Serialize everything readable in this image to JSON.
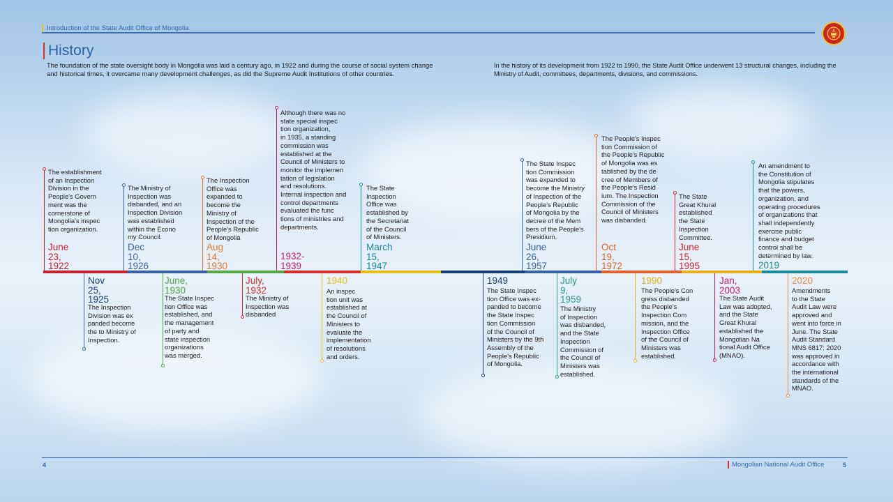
{
  "header": {
    "section": "Introduction of the State Audit Office of Mongolia"
  },
  "page": {
    "title": "History",
    "intro_left": "The foundation of the state oversight body in Mongolia was laid a century ago, in 1922 and during the course of social system change and historical times, it overcame many development challenges, as did the Supreme Audit Institutions of other countries.",
    "intro_right": "In the history of its development from 1922 to 1990, the State Audit Office underwent 13 structural changes, including the Ministry of Audit, committees, departments, divisions, and commissions."
  },
  "events": [
    {
      "date": "June\n23,\n1922",
      "color": "#c62332",
      "text": "The establishment\nof an Inspection\nDivision in the\nPeople's Govern\nment was the\ncornerstone of\nMongolia's inspec\ntion organization."
    },
    {
      "date": "Nov\n25,\n1925",
      "color": "#173f74",
      "text": "The Inspection\nDivision was ex\npanded become\nthe to Ministry of\nInspection."
    },
    {
      "date": "Dec\n10,\n1926",
      "color": "#3a63a6",
      "text": "The Ministry of\nInspection was\ndisbanded, and an\nInspection Division\nwas established\nwithin the Econo\nmy Council."
    },
    {
      "date": "June,\n1930",
      "color": "#55a646",
      "text": "The State Inspec\ntion Office was\nestablished, and\nthe management\nof party and\nstate inspection\norganizations\nwas merged."
    },
    {
      "date": "Aug\n14,\n1930",
      "color": "#e6792c",
      "text": "The Inspection\nOffice was\nexpanded to\nbecome the\nMinistry of\nInspection of the\nPeople's Republic\nof Mongolia"
    },
    {
      "date": "July,\n1932",
      "color": "#d32e2a",
      "text": "The Ministry of\nInspection was\ndisbanded"
    },
    {
      "date": "1932-\n1939",
      "color": "#c71e6b",
      "text": "Although there was no\nstate special inspec\ntion organization,\nin 1935, a standing\ncommission was\nestablished at the\nCouncil of Ministers to\nmonitor the implemen\ntation of legislation\nand resolutions.\nInternal inspection and\ncontrol departments\nevaluated the func\ntions of ministries and\ndepartments."
    },
    {
      "date": "1940",
      "color": "#e4c21c",
      "text": "An inspec\ntion unit was\nestablished at\nthe Council of\nMinisters to\nevaluate the\nimplementation\nof resolutions\nand orders."
    },
    {
      "date": "March\n15,\n1947",
      "color": "#1a8a9e",
      "text": "The State\nInspection\nOffice was\nestablished by\nthe Secretariat\nof the Council\nof Ministers."
    },
    {
      "date": "1949",
      "color": "#173f74",
      "text": "The State Inspec\ntion Office was ex-\npanded to become\nthe State Inspec\ntion Commission\nof the Council of\nMinisters by the 9th\nAssembly of the\nPeople's Republic\nof Mongolia."
    },
    {
      "date": "June\n26,\n1957",
      "color": "#3a63a6",
      "text": "The State Inspec\ntion Commission\nwas expanded to\nbecome the Ministry\nof Inspection of the\nPeople's Republic\nof Mongolia by the\ndecree of the Mem\nbers of the People's\nPresidium."
    },
    {
      "date": "July\n9,\n1959",
      "color": "#2c9a88",
      "text": "The Ministry\nof Inspection\nwas disbanded,\nand the State\nInspection\nCommission of\nthe Council of\nMinisters was\nestablished."
    },
    {
      "date": "Oct\n19,\n1972",
      "color": "#e3602a",
      "text": "The People's Inspec\ntion Commission of\nthe People's Republic\nof Mongolia was es\ntablished by the de\ncree of Members of\nthe People's Resid\nium. The Inspection\nCommission of the\nCouncil of Ministers\nwas disbanded."
    },
    {
      "date": "1990",
      "color": "#e8b11c",
      "text": "The People's Con\ngress disbanded\nthe People's\nInspection Com\nmission, and the\nInspection Office\nof the Council of\nMinisters was\nestablished."
    },
    {
      "date": "June\n15,\n1995",
      "color": "#d1262f",
      "text": "The State\nGreat Khural\nestablished\nthe State\nInspection\nCommittee."
    },
    {
      "date": "Jan,\n2003",
      "color": "#c71e6b",
      "text": "The State Audit\nLaw was adopted,\nand the State\nGreat Khural\nestablished the\nMongolian Na\ntional Audit Office\n(MNAO)."
    },
    {
      "date": "2019",
      "color": "#1a8a9e",
      "text": "An amendment to\nthe Constitution of\nMongolia stipulates\nthat the powers,\norganization, and\noperating procedures\nof organizations that\nshall independently\nexercise public\nfinance and budget\ncontrol shall be\ndetermined by law."
    },
    {
      "date": "2020",
      "color": "#ee8a3a",
      "text": "Amendments\nto the State\nAudit Law were\napproved and\nwent into force in\nJune. The State\nAudit Standard\nMNS 6817: 2020\nwas approved in\naccordance with\nthe international\nstandards of the\nMNAO."
    }
  ],
  "footer": {
    "left_page": "4",
    "right_page": "5",
    "org": "Mongolian National Audit Office"
  }
}
